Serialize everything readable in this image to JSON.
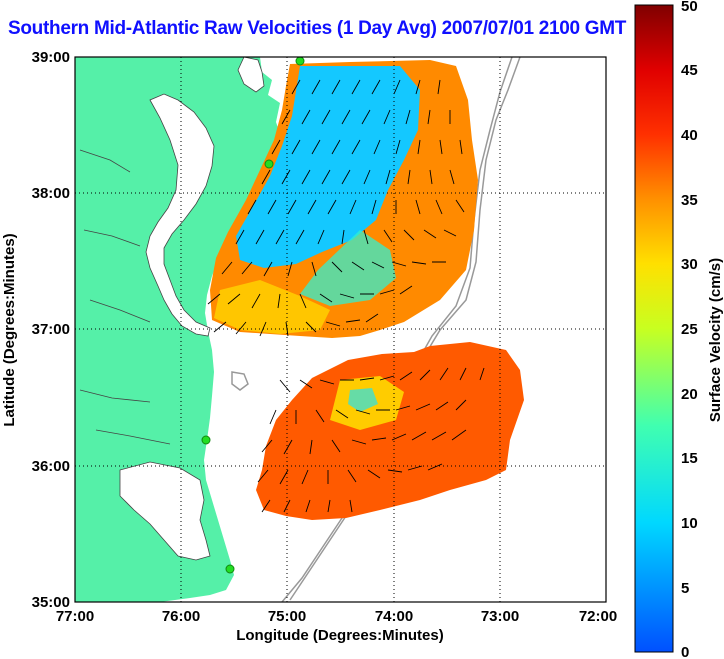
{
  "title": "Southern Mid-Atlantic Raw Velocities (1 Day Avg) 2007/07/01 2100 GMT",
  "axes": {
    "xlabel": "Longitude (Degrees:Minutes)",
    "ylabel": "Latitude (Degrees:Minutes)",
    "xticks": [
      "77:00",
      "76:00",
      "75:00",
      "74:00",
      "73:00",
      "72:00"
    ],
    "yticks": [
      "39:00",
      "38:00",
      "37:00",
      "36:00",
      "35:00"
    ],
    "xrange": [
      -77,
      -72
    ],
    "yrange": [
      35,
      39
    ]
  },
  "colorbar": {
    "label": "Surface Velocity (cm/s)",
    "ticks": [
      "0",
      "5",
      "10",
      "15",
      "20",
      "25",
      "30",
      "35",
      "40",
      "45",
      "50"
    ],
    "range": [
      0,
      50
    ]
  },
  "colors": {
    "land": "#55f0a8",
    "water": "#ffffff",
    "title": "#1010ff",
    "station": "#22dd22"
  },
  "stations": [
    {
      "lon": -75.1,
      "lat": 38.98
    },
    {
      "lon": -75.38,
      "lat": 38.2
    },
    {
      "lon": -75.6,
      "lat": 36.2
    },
    {
      "lon": -75.45,
      "lat": 35.27
    }
  ],
  "grid": true
}
